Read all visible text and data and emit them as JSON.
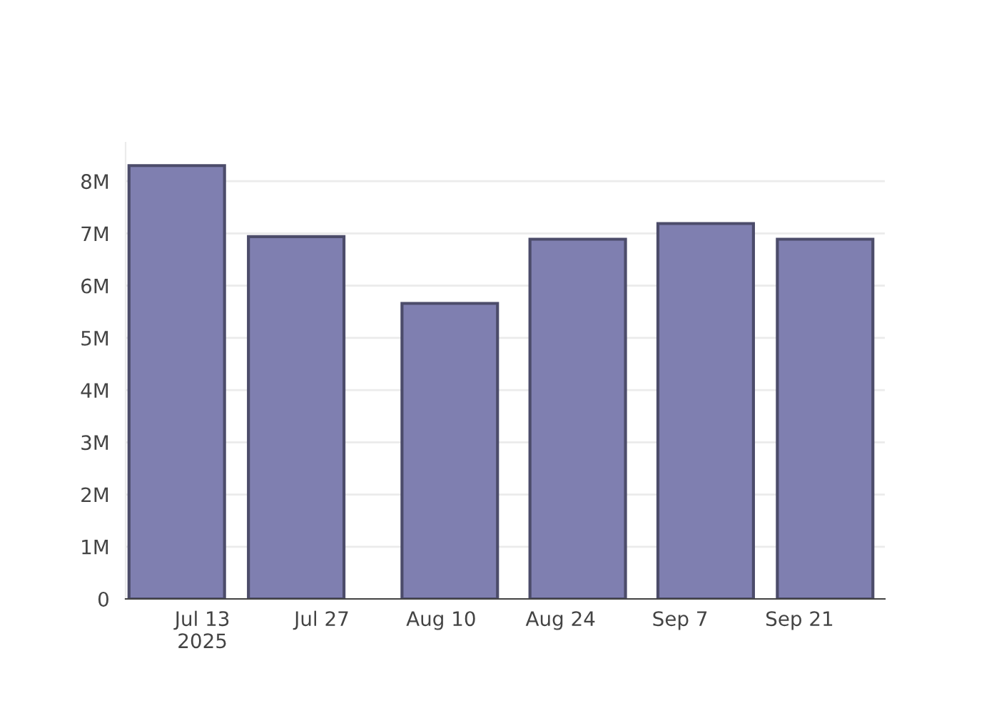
{
  "chart_data": {
    "type": "bar",
    "x": [
      "2025-07-10",
      "2025-07-24",
      "2025-08-11",
      "2025-08-26",
      "2025-09-10",
      "2025-09-24"
    ],
    "values": [
      8300000,
      6940000,
      5660000,
      6890000,
      7190000,
      6890000
    ],
    "color": "#7f7fb0",
    "xlim": [
      "2025-07-04",
      "2025-10-01"
    ],
    "xticks": [
      {
        "value": "2025-07-13",
        "label": "Jul 13\n2025"
      },
      {
        "value": "2025-07-27",
        "label": "Jul 27"
      },
      {
        "value": "2025-08-10",
        "label": "Aug 10"
      },
      {
        "value": "2025-08-24",
        "label": "Aug 24"
      },
      {
        "value": "2025-09-07",
        "label": "Sep 7"
      },
      {
        "value": "2025-09-21",
        "label": "Sep 21"
      }
    ],
    "ylim": [
      0,
      8740000
    ],
    "yticks": [
      0,
      {
        "value": 1000000,
        "label": "1M"
      },
      {
        "value": 2000000,
        "label": "2M"
      },
      {
        "value": 3000000,
        "label": "3M"
      },
      {
        "value": 4000000,
        "label": "4M"
      },
      {
        "value": 5000000,
        "label": "5M"
      },
      {
        "value": 6000000,
        "label": "6M"
      },
      {
        "value": 7000000,
        "label": "7M"
      },
      {
        "value": 8000000,
        "label": "8M"
      }
    ],
    "grid": "y"
  }
}
